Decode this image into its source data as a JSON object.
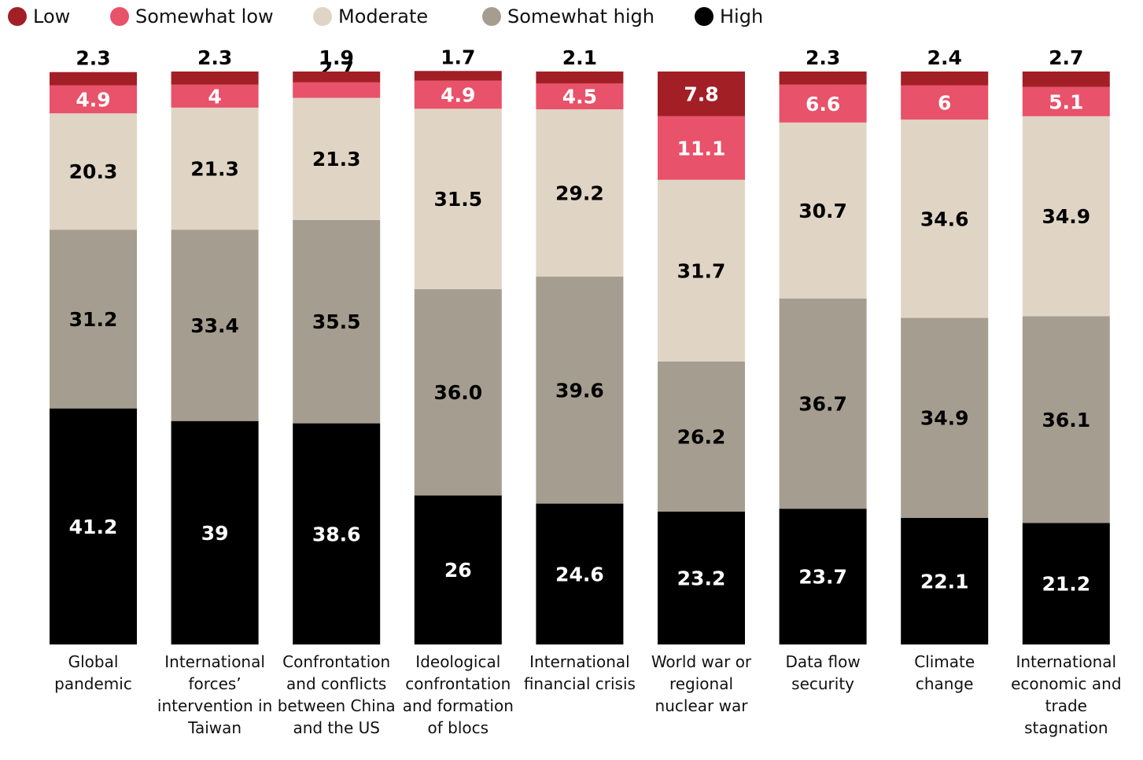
{
  "chart_data": {
    "type": "stacked_bar",
    "categories": [
      "Global pandemic",
      "International forces’ intervention in Taiwan",
      "Confrontation and conflicts between China and the US",
      "Ideological confrontation and formation of blocs",
      "International financial crisis",
      "World war or regional nuclear war",
      "Data flow security",
      "Climate change",
      "International economic and trade stagnation"
    ],
    "ylim": [
      0,
      100
    ],
    "series": [
      {
        "name": "High",
        "color": "#000000",
        "values": [
          41.2,
          39,
          38.6,
          26,
          24.6,
          23.2,
          23.7,
          22.1,
          21.2
        ]
      },
      {
        "name": "Somewhat high",
        "color": "#a59d8f",
        "values": [
          31.2,
          33.4,
          35.5,
          36.0,
          39.6,
          26.2,
          36.7,
          34.9,
          36.1
        ],
        "value_labels": [
          "31.2",
          "33.4",
          "35.5",
          "36.0",
          "39.6",
          "26.2",
          "36.7",
          "34.9",
          "36.1"
        ]
      },
      {
        "name": "Moderate",
        "color": "#e0d5c5",
        "values": [
          20.3,
          21.3,
          21.3,
          31.5,
          29.2,
          31.7,
          30.7,
          34.6,
          34.9
        ]
      },
      {
        "name": "Somewhat low",
        "color": "#e8526a",
        "values": [
          4.9,
          4,
          2.7,
          4.9,
          4.5,
          11.1,
          6.6,
          6,
          5.1
        ]
      },
      {
        "name": "Low",
        "color": "#a31f26",
        "values": [
          2.3,
          2.3,
          1.9,
          1.7,
          2.1,
          7.8,
          2.3,
          2.4,
          2.7
        ]
      }
    ]
  }
}
